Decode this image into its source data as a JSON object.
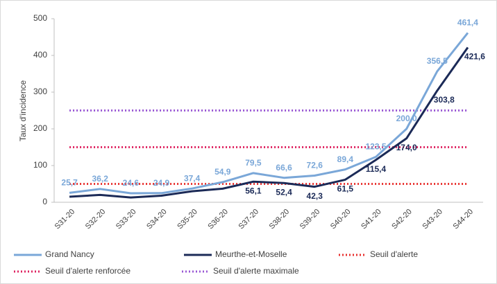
{
  "chart_data": {
    "type": "line",
    "ylabel": "Taux d'incidence",
    "categories": [
      "S31-20",
      "S32-20",
      "S33-20",
      "S34-20",
      "S35-20",
      "S36-20",
      "S37-20",
      "S38-20",
      "S39-20",
      "S40-20",
      "S41-20",
      "S42-20",
      "S43-20",
      "S44-20"
    ],
    "ylim": [
      0,
      500
    ],
    "yticks": [
      0,
      100,
      200,
      300,
      400,
      500
    ],
    "grid": false,
    "legend": "bottom",
    "series": [
      {
        "name": "Grand Nancy",
        "color": "#7aa7d8",
        "style": "solid",
        "values": [
          25.7,
          36.2,
          24.6,
          24.9,
          37.4,
          54.9,
          79.5,
          66.6,
          72.6,
          89.4,
          123.5,
          200.0,
          356.5,
          461.4
        ],
        "value_labels": [
          "25,7",
          "36,2",
          "24,6",
          "24,9",
          "37,4",
          "54,9",
          "79,5",
          "66,6",
          "72,6",
          "89,4",
          "123,5",
          "200,0",
          "356,5",
          "461,4"
        ]
      },
      {
        "name": "Meurthe-et-Moselle",
        "color": "#1b2a57",
        "style": "solid",
        "values": [
          15,
          20,
          13,
          18,
          30,
          37,
          56.1,
          52.4,
          42.3,
          61.5,
          115.4,
          174.0,
          303.8,
          421.6
        ],
        "value_labels": [
          null,
          null,
          null,
          null,
          null,
          null,
          "56,1",
          "52,4",
          "42,3",
          "61,5",
          "115,4",
          "174,0",
          "303,8",
          "421,6"
        ]
      },
      {
        "name": "Seuil d'alerte",
        "color": "#e8312f",
        "style": "dotted",
        "values": [
          50,
          50,
          50,
          50,
          50,
          50,
          50,
          50,
          50,
          50,
          50,
          50,
          50,
          50
        ]
      },
      {
        "name": "Seuil d'alerte renforcée",
        "color": "#df2461",
        "style": "dotted",
        "values": [
          150,
          150,
          150,
          150,
          150,
          150,
          150,
          150,
          150,
          150,
          150,
          150,
          150,
          150
        ]
      },
      {
        "name": "Seuil d'alerte maximale",
        "color": "#9a58d4",
        "style": "dotted",
        "values": [
          250,
          250,
          250,
          250,
          250,
          250,
          250,
          250,
          250,
          250,
          250,
          250,
          250,
          250
        ]
      }
    ]
  }
}
